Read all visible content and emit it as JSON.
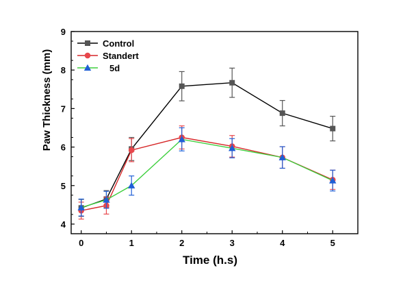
{
  "chart_data": {
    "type": "line",
    "title": "",
    "xlabel": "Time (h.s)",
    "ylabel": "Paw Thickness (mm)",
    "xlim": [
      -0.2,
      5.5
    ],
    "ylim": [
      3.75,
      9
    ],
    "x_ticks": [
      0,
      1,
      2,
      3,
      4,
      5
    ],
    "x_tick_labels": [
      "0",
      "1",
      "2",
      "3",
      "4",
      "5"
    ],
    "y_ticks": [
      4,
      5,
      6,
      7,
      8,
      9
    ],
    "y_tick_labels": [
      "4",
      "5",
      "6",
      "7",
      "8",
      "9"
    ],
    "grid": false,
    "legend_position": "top-left",
    "x": [
      0,
      0.5,
      1,
      2,
      3,
      4,
      5
    ],
    "series": [
      {
        "name": "Control",
        "color": "#000000",
        "marker_color": "#555555",
        "marker": "square",
        "values": [
          4.42,
          4.65,
          5.95,
          7.58,
          7.67,
          6.88,
          6.48
        ],
        "errors": [
          0.22,
          0.22,
          0.3,
          0.38,
          0.38,
          0.33,
          0.32
        ]
      },
      {
        "name": "Standert",
        "color": "#d62728",
        "marker_color": "#e8474c",
        "marker": "circle",
        "values": [
          4.35,
          4.48,
          5.92,
          6.25,
          6.02,
          5.73,
          5.15
        ],
        "errors": [
          0.22,
          0.22,
          0.3,
          0.3,
          0.28,
          0.28,
          0.25
        ]
      },
      {
        "name": "5d",
        "color": "#3ecf3e",
        "marker_color": "#1f5fd6",
        "marker": "triangle",
        "values": [
          4.43,
          4.63,
          5.0,
          6.2,
          5.97,
          5.73,
          5.13
        ],
        "errors": [
          0.22,
          0.22,
          0.25,
          0.3,
          0.25,
          0.28,
          0.27
        ]
      }
    ]
  }
}
